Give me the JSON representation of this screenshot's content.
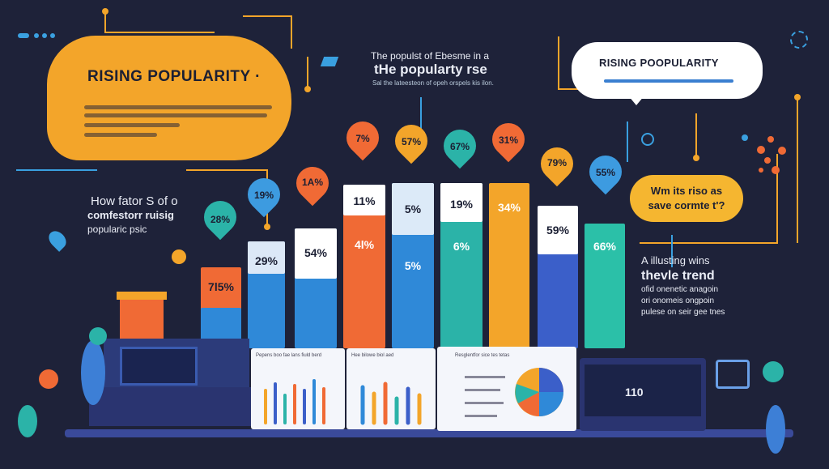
{
  "top_left_dots": [
    "#3aa0e0",
    "#3aa0e0",
    "#3aa0e0",
    "#3aa0e0"
  ],
  "bubble_orange": {
    "title": "RISING POPULARITY ·"
  },
  "bubble_white": {
    "title": "RISING POOPULARITY"
  },
  "bubble_yellow": {
    "line1": "Wm its riso as",
    "line2": "save cormte t'?"
  },
  "top_center": {
    "line1": "The populst of Ebesme in a",
    "line2": "tHe popularty rse",
    "line3": "Sal the lateesteon of opeh orspels kis ilon."
  },
  "left_text": {
    "line1": "How fator S of o",
    "line2": "comfestorr ruisig",
    "line3": "popularic psic"
  },
  "right_text": {
    "line1": "A illusting wins",
    "line2": "thevle trend",
    "line3": "ofid onenetic anagoin",
    "line4": "ori onomeis ongpoin",
    "line5": "pulese on seir gee tnes"
  },
  "bars": [
    {
      "color": "#f06a35",
      "value": "7l5%",
      "pin": "28%",
      "pin_color": "#2bb3a8"
    },
    {
      "color": "#2f89d8",
      "value": "29%",
      "pin": "19%",
      "pin_color": "#3d9be0"
    },
    {
      "color": "#2f89d8",
      "value": "54%",
      "pin": "1A%",
      "pin_color": "#f06a35"
    },
    {
      "color": "#f06a35",
      "value": "4l%",
      "pin": "7%",
      "pin_color": "#f06a35"
    },
    {
      "color": "#2f89d8",
      "value": "5%",
      "pin": "57%",
      "pin_color": "#f3a52a"
    },
    {
      "color": "#2bb3a8",
      "value": "6%",
      "pin": "67%",
      "pin_color": "#2bb3a8"
    },
    {
      "color": "#f3a52a",
      "value": "34%",
      "pin": "31%",
      "pin_color": "#f06a35"
    },
    {
      "color": "#3b5fc9",
      "value": "59%",
      "pin": "79%",
      "pin_color": "#f3a52a"
    },
    {
      "color": "#2bc0a8",
      "value": "66%",
      "pin": "55%",
      "pin_color": "#3d9be0"
    }
  ],
  "bar_top_labels": {
    "b4": "11%",
    "b5": "5%",
    "b6": "19%"
  },
  "panel_left": {
    "heading": "Pepens boo fae lans fiuld berd"
  },
  "panel_mid": {
    "heading": "Hee bilowe biol aed"
  },
  "panel_right": {
    "heading": "Resglentfor sice tes tetas"
  },
  "monitor_right": {
    "value": "110"
  }
}
